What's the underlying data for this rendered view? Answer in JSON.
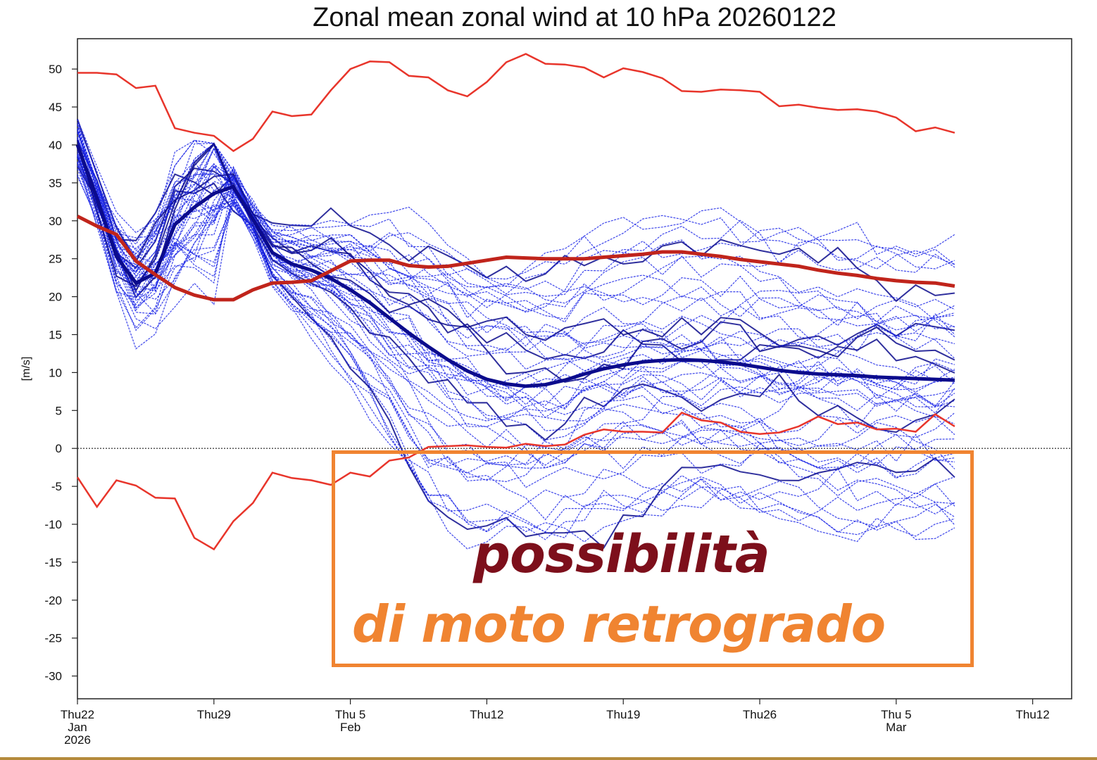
{
  "chart_data": {
    "type": "line",
    "title": "Zonal mean zonal wind at 10 hPa 20260122",
    "ylabel": "[m/s]",
    "xlabel": "",
    "ylim": [
      -33,
      54
    ],
    "xlim": [
      0,
      51
    ],
    "yticks": [
      50,
      45,
      40,
      35,
      30,
      25,
      20,
      15,
      10,
      5,
      0,
      -5,
      -10,
      -15,
      -20,
      -25,
      -30
    ],
    "xticks": [
      {
        "x": 0,
        "lines": [
          "Thu22",
          "Jan",
          "2026"
        ]
      },
      {
        "x": 7,
        "lines": [
          "Thu29"
        ]
      },
      {
        "x": 14,
        "lines": [
          "Thu 5",
          "Feb"
        ]
      },
      {
        "x": 21,
        "lines": [
          "Thu12"
        ]
      },
      {
        "x": 28,
        "lines": [
          "Thu19"
        ]
      },
      {
        "x": 35,
        "lines": [
          "Thu26"
        ]
      },
      {
        "x": 42,
        "lines": [
          "Thu 5",
          "Mar"
        ]
      },
      {
        "x": 49,
        "lines": [
          "Thu12"
        ]
      }
    ],
    "zero_line": true,
    "grid": false,
    "legend": "none",
    "colors": {
      "ensemble": "#1a24e6",
      "ensemble_mean": "#0b0b8c",
      "envelope": "#e8352b",
      "climatology": "#c0241b",
      "zero_line": "#444444"
    },
    "ensemble_member_count": 50,
    "series": [
      {
        "role": "envelope-max",
        "points": [
          [
            0,
            49.5
          ],
          [
            1,
            49.5
          ],
          [
            2,
            49.3
          ],
          [
            3,
            47.5
          ],
          [
            4,
            47.8
          ],
          [
            5,
            42.2
          ],
          [
            6,
            41.6
          ],
          [
            7,
            41.2
          ],
          [
            8,
            39.2
          ],
          [
            9,
            40.8
          ],
          [
            10,
            44.4
          ],
          [
            11,
            43.8
          ],
          [
            12,
            44.0
          ],
          [
            13,
            47.2
          ],
          [
            14,
            50.0
          ],
          [
            15,
            51.0
          ],
          [
            16,
            50.9
          ],
          [
            17,
            49.1
          ],
          [
            18,
            48.9
          ],
          [
            19,
            47.2
          ],
          [
            20,
            46.4
          ],
          [
            21,
            48.3
          ],
          [
            22,
            50.9
          ],
          [
            23,
            52.0
          ],
          [
            24,
            50.7
          ],
          [
            25,
            50.6
          ],
          [
            26,
            50.2
          ],
          [
            27,
            48.9
          ],
          [
            28,
            50.1
          ],
          [
            29,
            49.6
          ],
          [
            30,
            48.8
          ],
          [
            31,
            47.1
          ],
          [
            32,
            47.0
          ],
          [
            33,
            47.3
          ],
          [
            34,
            47.2
          ],
          [
            35,
            47.0
          ],
          [
            36,
            45.1
          ],
          [
            37,
            45.3
          ],
          [
            38,
            44.9
          ],
          [
            39,
            44.6
          ],
          [
            40,
            44.7
          ],
          [
            41,
            44.4
          ],
          [
            42,
            43.6
          ],
          [
            43,
            41.8
          ],
          [
            44,
            42.3
          ],
          [
            45,
            41.6
          ]
        ]
      },
      {
        "role": "envelope-min",
        "points": [
          [
            0,
            -3.8
          ],
          [
            1,
            -7.7
          ],
          [
            2,
            -4.2
          ],
          [
            3,
            -4.9
          ],
          [
            4,
            -6.5
          ],
          [
            5,
            -6.6
          ],
          [
            6,
            -11.8
          ],
          [
            7,
            -13.3
          ],
          [
            8,
            -9.6
          ],
          [
            9,
            -7.2
          ],
          [
            10,
            -3.2
          ],
          [
            11,
            -3.9
          ],
          [
            12,
            -4.2
          ],
          [
            13,
            -4.8
          ],
          [
            14,
            -3.2
          ],
          [
            15,
            -3.7
          ],
          [
            16,
            -1.6
          ],
          [
            17,
            -1.2
          ],
          [
            18,
            0.2
          ],
          [
            19,
            0.3
          ],
          [
            20,
            0.4
          ],
          [
            21,
            0.2
          ],
          [
            22,
            0.1
          ],
          [
            23,
            0.6
          ],
          [
            24,
            0.3
          ],
          [
            25,
            0.5
          ],
          [
            26,
            1.8
          ],
          [
            27,
            2.5
          ],
          [
            28,
            2.2
          ],
          [
            29,
            2.2
          ],
          [
            30,
            2.1
          ],
          [
            31,
            4.7
          ],
          [
            32,
            3.7
          ],
          [
            33,
            3.4
          ],
          [
            34,
            2.2
          ],
          [
            35,
            1.9
          ],
          [
            36,
            2.1
          ],
          [
            37,
            2.9
          ],
          [
            38,
            4.2
          ],
          [
            39,
            3.2
          ],
          [
            40,
            3.4
          ],
          [
            41,
            2.5
          ],
          [
            42,
            2.6
          ],
          [
            43,
            2.2
          ],
          [
            44,
            4.5
          ],
          [
            45,
            2.9
          ]
        ]
      },
      {
        "role": "climatology",
        "points": [
          [
            0,
            30.6
          ],
          [
            1,
            29.3
          ],
          [
            2,
            28.2
          ],
          [
            3,
            24.7
          ],
          [
            4,
            22.9
          ],
          [
            5,
            21.2
          ],
          [
            6,
            20.2
          ],
          [
            7,
            19.6
          ],
          [
            8,
            19.6
          ],
          [
            9,
            20.9
          ],
          [
            10,
            21.8
          ],
          [
            11,
            21.9
          ],
          [
            12,
            22.1
          ],
          [
            13,
            23.4
          ],
          [
            14,
            24.7
          ],
          [
            15,
            24.8
          ],
          [
            16,
            24.8
          ],
          [
            17,
            24.1
          ],
          [
            18,
            23.9
          ],
          [
            19,
            24.0
          ],
          [
            20,
            24.4
          ],
          [
            21,
            24.8
          ],
          [
            22,
            25.2
          ],
          [
            23,
            25.1
          ],
          [
            24,
            25.0
          ],
          [
            25,
            25.0
          ],
          [
            26,
            25.0
          ],
          [
            27,
            25.2
          ],
          [
            28,
            25.4
          ],
          [
            29,
            25.6
          ],
          [
            30,
            25.9
          ],
          [
            31,
            25.9
          ],
          [
            32,
            25.6
          ],
          [
            33,
            25.3
          ],
          [
            34,
            24.9
          ],
          [
            35,
            24.6
          ],
          [
            36,
            24.3
          ],
          [
            37,
            24.0
          ],
          [
            38,
            23.5
          ],
          [
            39,
            23.1
          ],
          [
            40,
            22.8
          ],
          [
            41,
            22.4
          ],
          [
            42,
            22.1
          ],
          [
            43,
            21.9
          ],
          [
            44,
            21.8
          ],
          [
            45,
            21.4
          ]
        ]
      },
      {
        "role": "ensemble-mean",
        "points": [
          [
            0,
            40.0
          ],
          [
            1,
            33.0
          ],
          [
            2,
            25.3
          ],
          [
            3,
            21.8
          ],
          [
            4,
            23.1
          ],
          [
            5,
            29.5
          ],
          [
            6,
            31.8
          ],
          [
            7,
            33.6
          ],
          [
            8,
            34.5
          ],
          [
            9,
            30.2
          ],
          [
            10,
            25.8
          ],
          [
            11,
            24.3
          ],
          [
            12,
            23.5
          ],
          [
            13,
            22.4
          ],
          [
            14,
            20.9
          ],
          [
            15,
            19.2
          ],
          [
            16,
            17.2
          ],
          [
            17,
            15.2
          ],
          [
            18,
            13.4
          ],
          [
            19,
            11.7
          ],
          [
            20,
            10.2
          ],
          [
            21,
            9.1
          ],
          [
            22,
            8.5
          ],
          [
            23,
            8.2
          ],
          [
            24,
            8.4
          ],
          [
            25,
            9.0
          ],
          [
            26,
            9.8
          ],
          [
            27,
            10.5
          ],
          [
            28,
            11.0
          ],
          [
            29,
            11.4
          ],
          [
            30,
            11.6
          ],
          [
            31,
            11.7
          ],
          [
            32,
            11.6
          ],
          [
            33,
            11.4
          ],
          [
            34,
            11.1
          ],
          [
            35,
            10.7
          ],
          [
            36,
            10.3
          ],
          [
            37,
            10.0
          ],
          [
            38,
            9.8
          ],
          [
            39,
            9.7
          ],
          [
            40,
            9.6
          ],
          [
            41,
            9.4
          ],
          [
            42,
            9.3
          ],
          [
            43,
            9.2
          ],
          [
            44,
            9.1
          ],
          [
            45,
            9.0
          ]
        ]
      }
    ]
  },
  "annotation": {
    "line1": "possibilità",
    "line2": "di moto retrogrado",
    "line1_color": "#7d0f1b",
    "line2_color": "#f08431",
    "box_color": "#f08431"
  },
  "bottom_rule_color": "#b48a3c"
}
